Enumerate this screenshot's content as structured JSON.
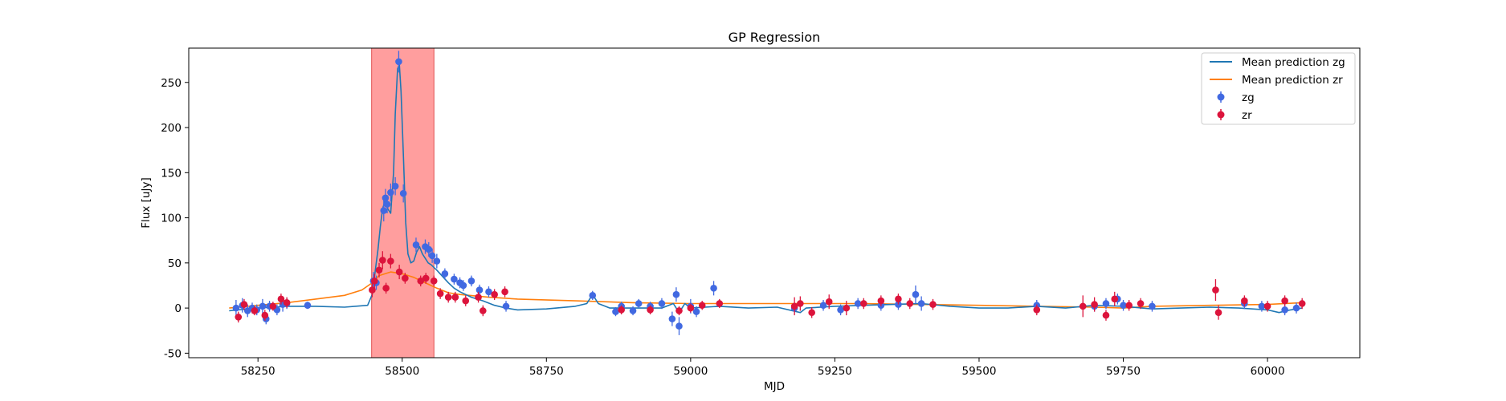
{
  "chart_data": {
    "type": "scatter",
    "title": "GP Regression",
    "xlabel": "MJD",
    "ylabel": "Flux [uJy]",
    "xlim": [
      58130,
      60160
    ],
    "ylim": [
      -55,
      288
    ],
    "xticks": [
      58250,
      58500,
      58750,
      59000,
      59250,
      59500,
      59750,
      60000
    ],
    "yticks": [
      -50,
      0,
      50,
      100,
      150,
      200,
      250
    ],
    "grid": false,
    "legend_position": "upper right",
    "highlight_band": {
      "x_start": 58447,
      "x_end": 58555,
      "color": "#ff9e9e"
    },
    "colors": {
      "zg_line": "#1f77b4",
      "zr_line": "#ff7f0e",
      "zg_points": "#4169e1",
      "zr_points": "#dc143c"
    },
    "series": [
      {
        "name": "Mean prediction zg",
        "kind": "line",
        "x": [
          58200,
          58250,
          58300,
          58350,
          58400,
          58440,
          58448,
          58452,
          58458,
          58462,
          58466,
          58470,
          58475,
          58480,
          58485,
          58488,
          58492,
          58495,
          58498,
          58502,
          58506,
          58510,
          58515,
          58520,
          58525,
          58530,
          58535,
          58540,
          58545,
          58550,
          58560,
          58570,
          58580,
          58590,
          58600,
          58620,
          58640,
          58660,
          58680,
          58700,
          58750,
          58800,
          58820,
          58830,
          58840,
          58860,
          58900,
          58950,
          58970,
          58980,
          58990,
          59000,
          59050,
          59100,
          59150,
          59190,
          59200,
          59250,
          59300,
          59400,
          59450,
          59500,
          59550,
          59600,
          59650,
          59700,
          59750,
          59800,
          59850,
          59900,
          59950,
          60000,
          60020,
          60040,
          60060
        ],
        "y": [
          -3,
          0,
          2,
          2,
          1,
          3,
          15,
          35,
          65,
          90,
          110,
          118,
          110,
          105,
          150,
          215,
          265,
          270,
          240,
          170,
          95,
          60,
          50,
          52,
          62,
          68,
          60,
          55,
          50,
          48,
          42,
          35,
          28,
          22,
          18,
          12,
          8,
          3,
          0,
          -2,
          -1,
          2,
          5,
          15,
          5,
          0,
          0,
          0,
          5,
          -5,
          5,
          0,
          2,
          0,
          1,
          -5,
          0,
          2,
          3,
          5,
          2,
          0,
          0,
          2,
          0,
          3,
          2,
          -1,
          0,
          1,
          0,
          -2,
          -5,
          -2,
          0
        ]
      },
      {
        "name": "Mean prediction zr",
        "kind": "line",
        "x": [
          58200,
          58250,
          58300,
          58350,
          58400,
          58430,
          58448,
          58460,
          58480,
          58500,
          58520,
          58540,
          58560,
          58580,
          58600,
          58650,
          58700,
          58800,
          58900,
          59000,
          59100,
          59200,
          59300,
          59400,
          59500,
          59600,
          59700,
          59750,
          59800,
          59900,
          60000,
          60060
        ],
        "y": [
          0,
          3,
          6,
          10,
          14,
          20,
          28,
          36,
          40,
          38,
          34,
          28,
          22,
          17,
          15,
          12,
          10,
          8,
          6,
          5,
          5,
          5,
          5,
          4,
          3,
          2,
          1,
          0,
          2,
          3,
          4,
          6
        ]
      },
      {
        "name": "zg",
        "kind": "errorbar-points",
        "x": [
          58212,
          58223,
          58232,
          58240,
          58248,
          58258,
          58264,
          58270,
          58283,
          58293,
          58300,
          58336,
          58450,
          58455,
          58468,
          58471,
          58474,
          58480,
          58488,
          58494,
          58502,
          58524,
          58540,
          58546,
          58552,
          58560,
          58574,
          58590,
          58600,
          58606,
          58620,
          58634,
          58650,
          58680,
          58830,
          58870,
          58880,
          58900,
          58910,
          58930,
          58950,
          58968,
          58975,
          58980,
          59000,
          59010,
          59040,
          59180,
          59230,
          59260,
          59290,
          59330,
          59360,
          59390,
          59400,
          59600,
          59700,
          59720,
          59740,
          59750,
          59800,
          59960,
          59990,
          60030,
          60050
        ],
        "y": [
          0,
          3,
          -3,
          0,
          -2,
          2,
          -12,
          2,
          -2,
          4,
          5,
          3,
          30,
          28,
          108,
          122,
          115,
          128,
          135,
          273,
          127,
          70,
          68,
          65,
          58,
          52,
          38,
          32,
          28,
          25,
          30,
          20,
          18,
          2,
          14,
          -4,
          2,
          -3,
          5,
          2,
          5,
          -12,
          15,
          -20,
          2,
          -4,
          22,
          0,
          3,
          -2,
          5,
          3,
          4,
          15,
          5,
          3,
          2,
          5,
          10,
          3,
          2,
          5,
          2,
          -2,
          0
        ],
        "yerr": [
          9,
          8,
          7,
          6,
          6,
          8,
          6,
          6,
          6,
          8,
          6,
          4,
          10,
          8,
          12,
          10,
          10,
          10,
          10,
          12,
          10,
          8,
          8,
          8,
          8,
          8,
          6,
          6,
          6,
          6,
          6,
          6,
          6,
          6,
          5,
          5,
          5,
          5,
          5,
          5,
          6,
          8,
          8,
          10,
          8,
          6,
          8,
          6,
          6,
          6,
          6,
          6,
          6,
          10,
          8,
          6,
          6,
          6,
          6,
          6,
          6,
          6,
          6,
          6,
          6
        ]
      },
      {
        "name": "zr",
        "kind": "errorbar-points",
        "x": [
          58216,
          58226,
          58244,
          58262,
          58276,
          58290,
          58300,
          58448,
          58452,
          58460,
          58466,
          58472,
          58480,
          58495,
          58505,
          58532,
          58541,
          58555,
          58566,
          58580,
          58592,
          58610,
          58632,
          58640,
          58660,
          58678,
          58880,
          58930,
          58980,
          59000,
          59020,
          59050,
          59180,
          59190,
          59210,
          59240,
          59270,
          59300,
          59330,
          59360,
          59380,
          59420,
          59600,
          59680,
          59700,
          59720,
          59735,
          59760,
          59780,
          59910,
          59915,
          59960,
          60000,
          60030,
          60060
        ],
        "y": [
          -10,
          4,
          -3,
          -8,
          2,
          10,
          6,
          20,
          30,
          42,
          53,
          22,
          52,
          40,
          33,
          30,
          33,
          30,
          16,
          12,
          12,
          8,
          12,
          -3,
          15,
          18,
          -2,
          -2,
          -3,
          0,
          3,
          5,
          2,
          5,
          -5,
          7,
          0,
          5,
          8,
          10,
          5,
          4,
          -2,
          2,
          4,
          -8,
          10,
          3,
          5,
          20,
          -5,
          8,
          2,
          8,
          5
        ],
        "yerr": [
          6,
          6,
          5,
          6,
          5,
          6,
          6,
          8,
          8,
          8,
          10,
          6,
          8,
          8,
          6,
          6,
          6,
          6,
          6,
          6,
          6,
          6,
          6,
          6,
          6,
          6,
          5,
          5,
          5,
          5,
          5,
          5,
          10,
          8,
          6,
          8,
          8,
          6,
          6,
          6,
          6,
          6,
          6,
          12,
          8,
          6,
          8,
          6,
          6,
          12,
          8,
          6,
          6,
          6,
          6
        ]
      }
    ]
  }
}
